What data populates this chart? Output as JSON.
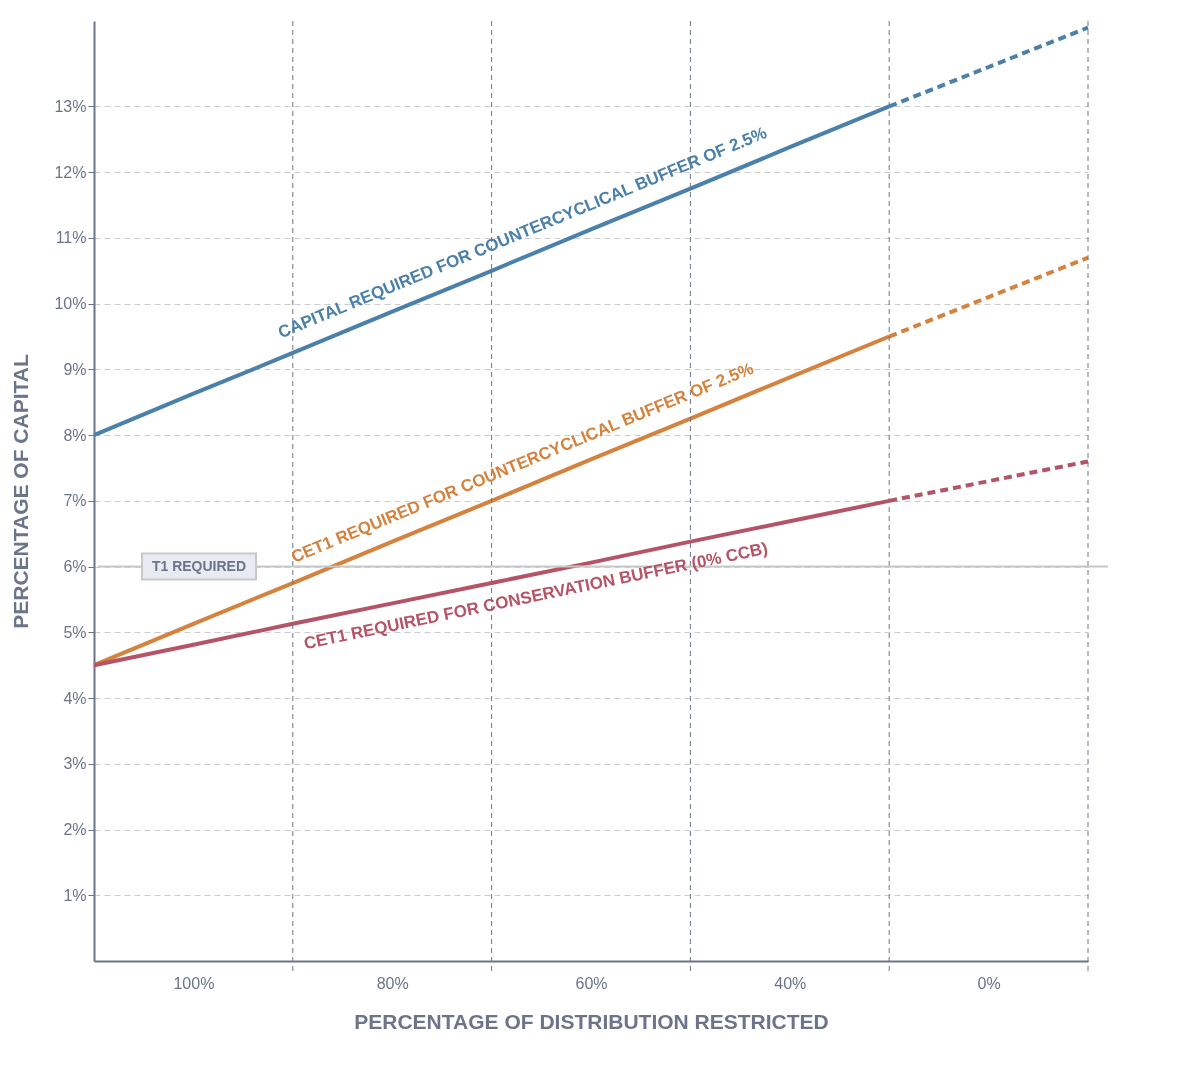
{
  "chart_data": {
    "type": "line",
    "xlabel": "PERCENTAGE OF DISTRIBUTION RESTRICTED",
    "ylabel": "PERCENTAGE OF CAPITAL",
    "categories": [
      null,
      "100%",
      null,
      "80%",
      null,
      "60%",
      null,
      "40%",
      null,
      "0%",
      null
    ],
    "ylim": [
      0,
      14.3
    ],
    "yticks": [
      {
        "value": 1,
        "label": "1%"
      },
      {
        "value": 2,
        "label": "2%"
      },
      {
        "value": 3,
        "label": "3%"
      },
      {
        "value": 4,
        "label": "4%"
      },
      {
        "value": 5,
        "label": "5%"
      },
      {
        "value": 6,
        "label": "6%"
      },
      {
        "value": 7,
        "label": "7%"
      },
      {
        "value": 8,
        "label": "8%"
      },
      {
        "value": 9,
        "label": "9%"
      },
      {
        "value": 10,
        "label": "10%"
      },
      {
        "value": 11,
        "label": "11%"
      },
      {
        "value": 12,
        "label": "12%"
      },
      {
        "value": 13,
        "label": "13%"
      }
    ],
    "grid": true,
    "legend": false,
    "marker": "none",
    "series": [
      {
        "name": "CAPITAL REQUIRED FOR COUNTERCYCLICAL BUFFER OF 2.5%",
        "color": "#4a80aa",
        "values": [
          8,
          8.63,
          9.25,
          9.88,
          10.5,
          11.13,
          11.75,
          12.38,
          13,
          null,
          null
        ],
        "line_style": "solid"
      },
      {
        "color": "#4a80aa",
        "values": [
          null,
          null,
          null,
          null,
          null,
          null,
          null,
          null,
          13,
          13.6,
          14.2
        ],
        "line_style": "dashed"
      },
      {
        "name": "CET1 REQUIRED FOR COUNTERCYCLICAL BUFFER OF 2.5%",
        "color": "#d4823e",
        "values": [
          4.5,
          5.13,
          5.75,
          6.38,
          7,
          7.63,
          8.25,
          8.88,
          9.5,
          null,
          null
        ],
        "line_style": "solid"
      },
      {
        "color": "#d4823e",
        "values": [
          null,
          null,
          null,
          null,
          null,
          null,
          null,
          null,
          9.5,
          10.1,
          10.7
        ],
        "line_style": "dashed"
      },
      {
        "name": "CET1 REQUIRED FOR CONSERVATION BUFFER (0% CCB)",
        "color": "#b55467",
        "values": [
          4.5,
          4.81,
          5.13,
          5.44,
          5.75,
          6.06,
          6.38,
          6.69,
          7,
          null,
          null
        ],
        "line_style": "solid"
      },
      {
        "color": "#b55467",
        "values": [
          null,
          null,
          null,
          null,
          null,
          null,
          null,
          null,
          7,
          7.3,
          7.6
        ],
        "line_style": "dashed"
      }
    ],
    "ref_lines": [
      {
        "axis": "y",
        "value": 6,
        "label": "T1 REQUIRED",
        "color": "#c8c8c8"
      }
    ]
  }
}
